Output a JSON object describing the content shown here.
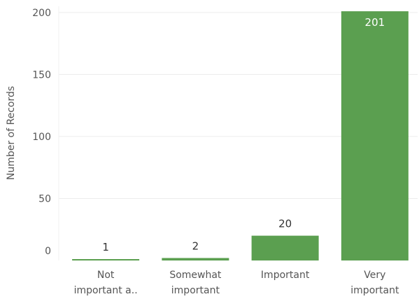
{
  "chart_data": {
    "type": "bar",
    "categories": [
      [
        "Not",
        "important a.."
      ],
      [
        "Somewhat",
        "important"
      ],
      [
        "Important"
      ],
      [
        "Very",
        "important"
      ]
    ],
    "values": [
      1,
      2,
      20,
      201
    ],
    "value_labels": [
      "1",
      "2",
      "20",
      "201"
    ],
    "ylabel": "Number of Records",
    "yticks": [
      "0",
      "50",
      "100",
      "150",
      "200"
    ],
    "ylim": [
      0,
      205
    ],
    "grid": true,
    "bar_color": "#5b9f50",
    "label_color_outside": "#333333",
    "label_color_inside": "#ffffff"
  }
}
